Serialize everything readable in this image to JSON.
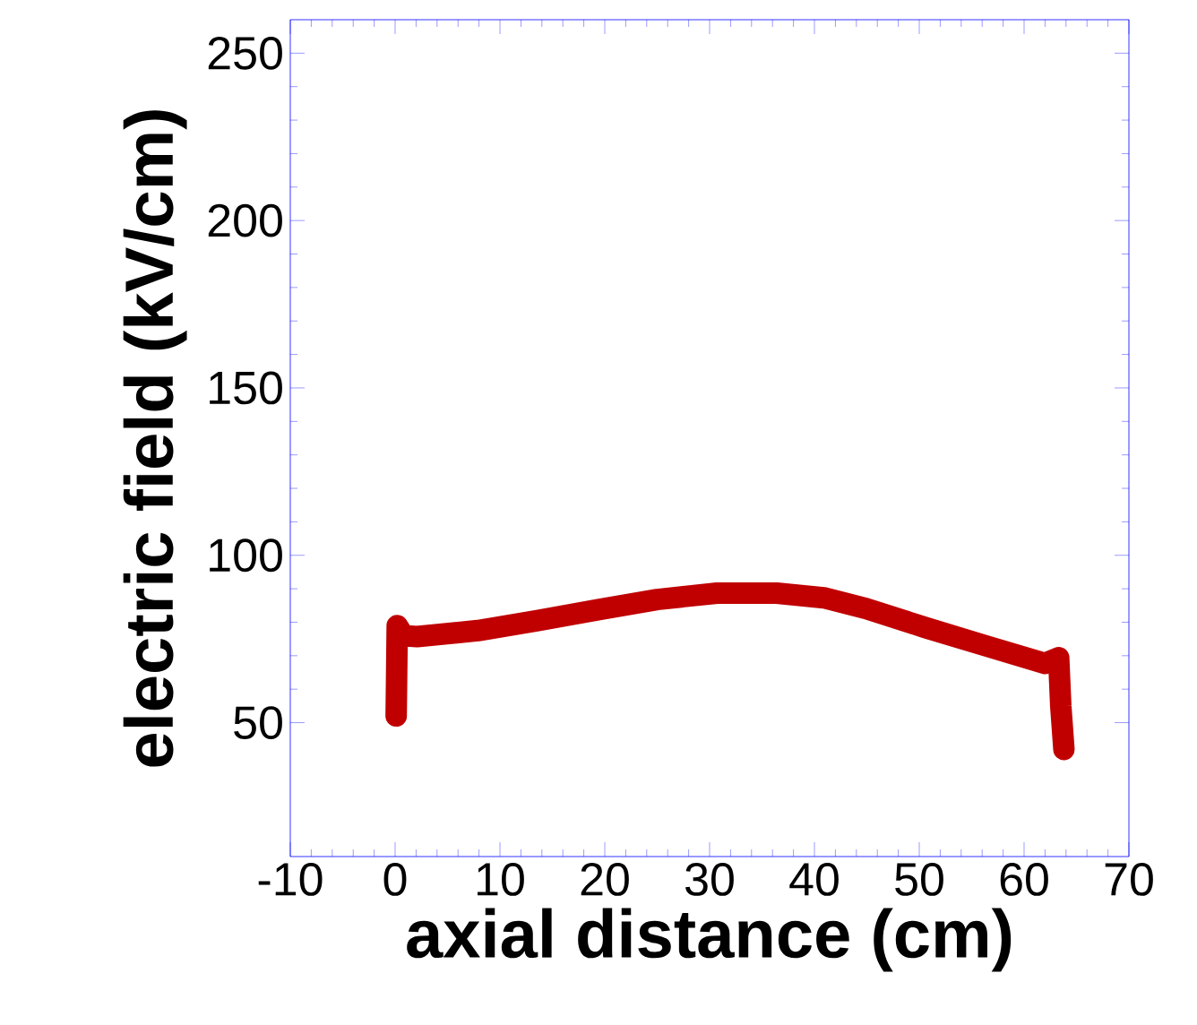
{
  "chart_data": {
    "type": "line",
    "xlabel": "axial distance (cm)",
    "ylabel": "electric field (kV/cm)",
    "xlim": [
      -10,
      70
    ],
    "xticks": [
      -10,
      0,
      10,
      20,
      30,
      40,
      50,
      60,
      70
    ],
    "ylim": [
      10,
      260
    ],
    "yticks": [
      50,
      100,
      150,
      200,
      250
    ],
    "series": [
      {
        "color": "#c00000",
        "x": [
          0.1,
          0.2,
          0.8,
          2.1,
          7.9,
          13.6,
          19.3,
          25.0,
          30.7,
          36.4,
          40.9,
          44.9,
          50.6,
          56.3,
          62.0,
          63.3,
          63.5,
          63.8
        ],
        "values": [
          52,
          79,
          76,
          75.7,
          77.5,
          80.5,
          83.7,
          86.8,
          88.7,
          88.7,
          87.3,
          84.1,
          78.4,
          73.0,
          67.7,
          69.4,
          55,
          42
        ]
      }
    ]
  }
}
